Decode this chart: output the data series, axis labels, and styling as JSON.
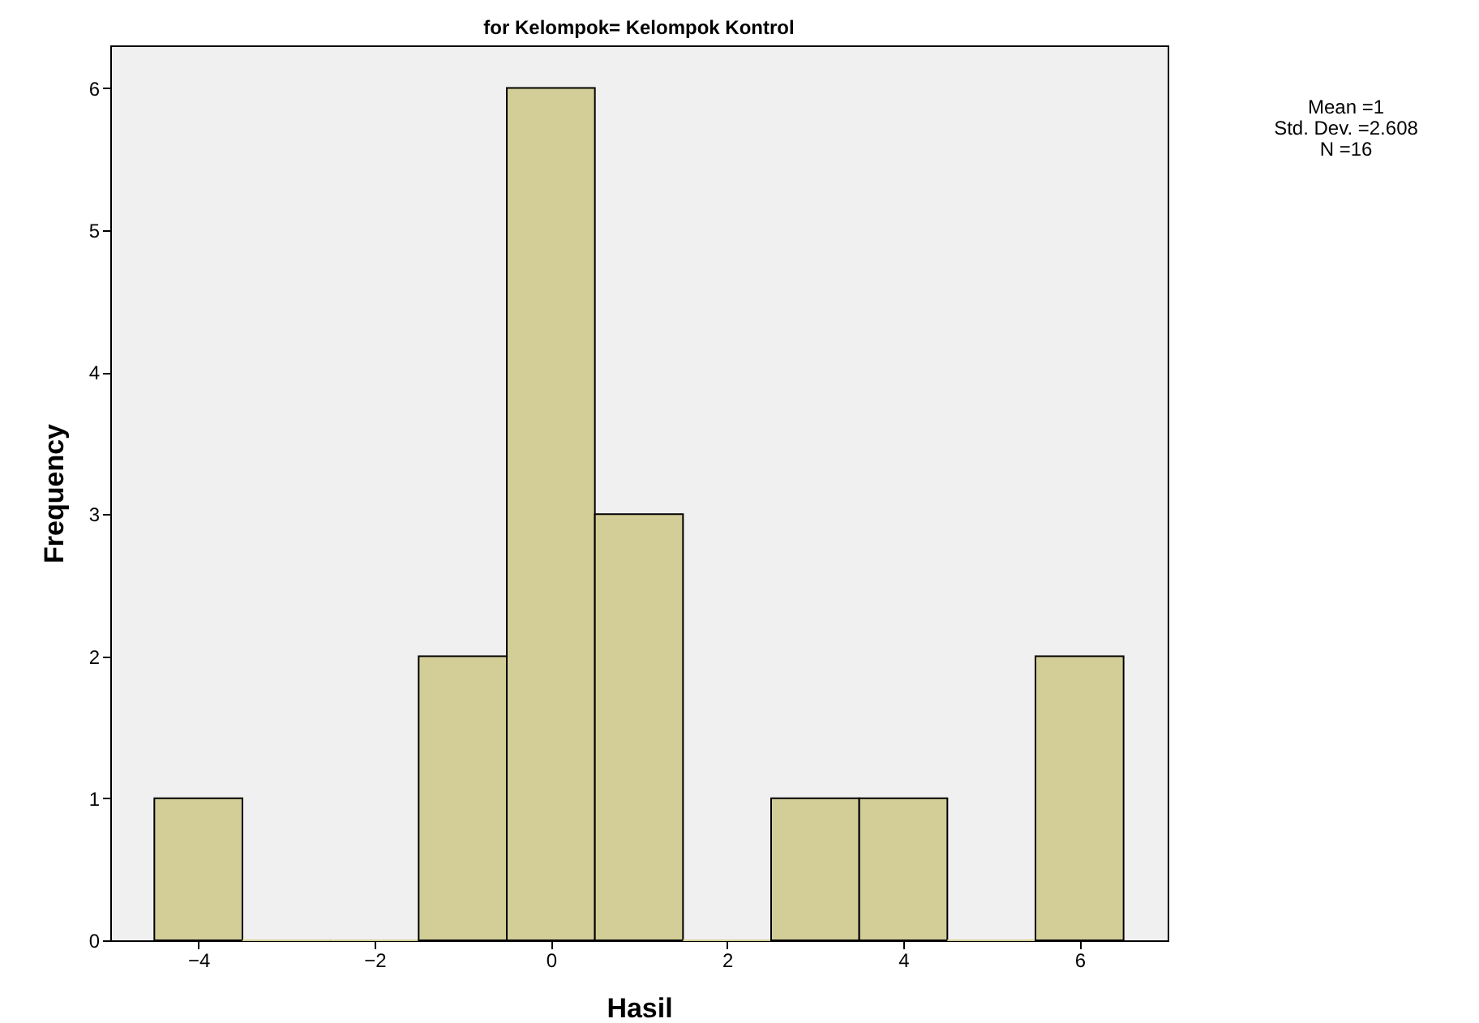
{
  "chart_data": {
    "type": "histogram",
    "title": "for Kelompok= Kelompok Kontrol",
    "xlabel": "Hasil",
    "ylabel": "Frequency",
    "bins": [
      -4.5,
      -3.5,
      -2.5,
      -1.5,
      -0.5,
      0.5,
      1.5,
      2.5,
      3.5,
      4.5,
      5.5,
      6.5
    ],
    "values": [
      1,
      0,
      0,
      2,
      6,
      3,
      0,
      1,
      1,
      0,
      2
    ],
    "color": "#d3ce97",
    "xlim": [
      -5,
      7
    ],
    "xticks": [
      -4,
      -2,
      0,
      2,
      4,
      6
    ],
    "ylim": [
      0,
      6.3
    ],
    "yticks": [
      0,
      1,
      2,
      3,
      4,
      5,
      6
    ],
    "grid": false,
    "annotations": [
      "Mean =1",
      "Std. Dev. =2.608",
      "N =16"
    ]
  }
}
